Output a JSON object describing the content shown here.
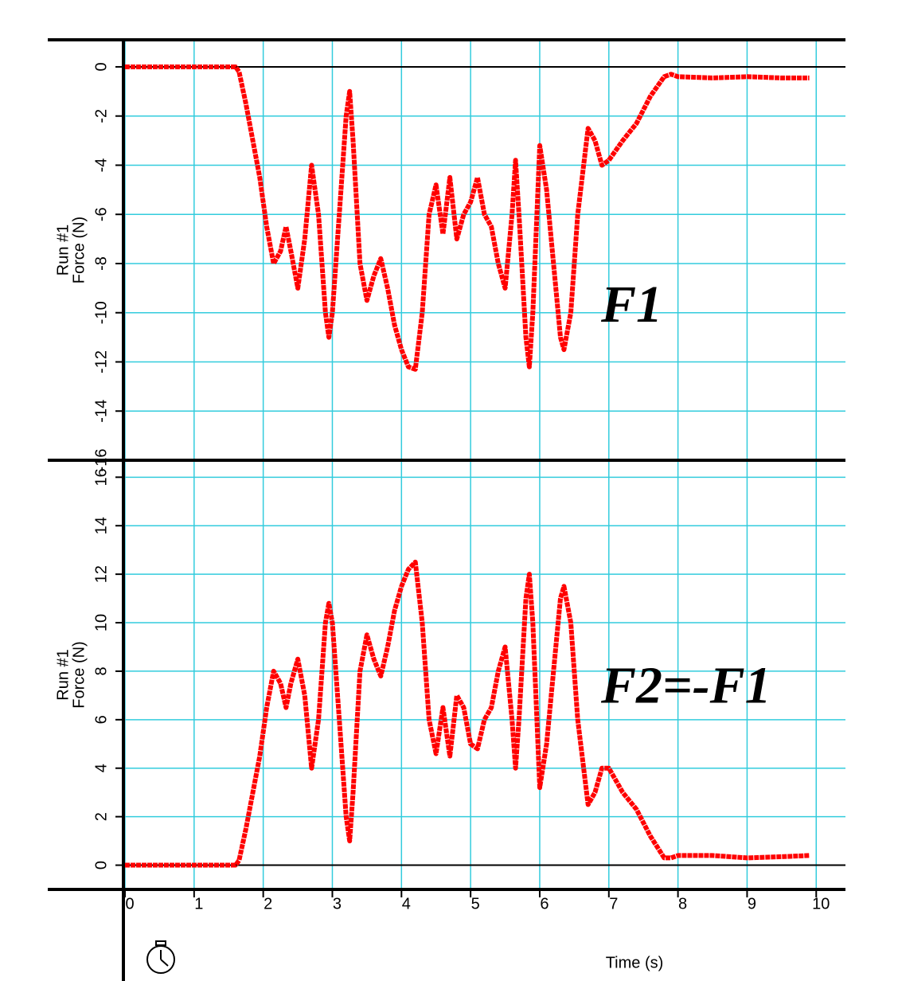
{
  "chart_data": [
    {
      "type": "line",
      "color": "#ff0000",
      "grid": true,
      "annotation": "F1",
      "ylabel_lines": [
        "Run #1",
        "Force (N)"
      ],
      "xlim": [
        0,
        10.4
      ],
      "ylim": [
        -16,
        1.1
      ],
      "yticks": [
        0,
        -2,
        -4,
        -6,
        -8,
        -10,
        -12,
        -14,
        -16
      ],
      "x": [
        0,
        1.6,
        1.65,
        1.75,
        1.85,
        1.95,
        2.05,
        2.15,
        2.25,
        2.33,
        2.4,
        2.5,
        2.6,
        2.7,
        2.8,
        2.9,
        2.95,
        3.0,
        3.1,
        3.2,
        3.25,
        3.3,
        3.4,
        3.5,
        3.6,
        3.7,
        3.8,
        3.9,
        4.0,
        4.1,
        4.2,
        4.3,
        4.4,
        4.5,
        4.6,
        4.7,
        4.8,
        4.9,
        5.0,
        5.1,
        5.2,
        5.3,
        5.4,
        5.5,
        5.6,
        5.65,
        5.7,
        5.8,
        5.85,
        5.9,
        6.0,
        6.1,
        6.2,
        6.3,
        6.35,
        6.45,
        6.55,
        6.7,
        6.8,
        6.9,
        7.0,
        7.2,
        7.4,
        7.6,
        7.8,
        7.9,
        8.0,
        8.5,
        9.0,
        9.5,
        9.9
      ],
      "values": [
        0,
        0,
        -0.2,
        -1.5,
        -3,
        -4.5,
        -6.5,
        -8,
        -7.5,
        -6.5,
        -7.5,
        -9,
        -7,
        -4,
        -6,
        -10,
        -11,
        -10,
        -6,
        -2,
        -1,
        -3,
        -8,
        -9.5,
        -8.5,
        -7.8,
        -9,
        -10.5,
        -11.5,
        -12.2,
        -12.3,
        -10,
        -6,
        -4.8,
        -6.8,
        -4.5,
        -7,
        -6,
        -5.5,
        -4.5,
        -6,
        -6.5,
        -8,
        -9,
        -6,
        -3.8,
        -6,
        -11,
        -12.2,
        -10,
        -3.2,
        -5,
        -8,
        -11,
        -11.5,
        -10,
        -6,
        -2.5,
        -3,
        -4,
        -3.8,
        -3,
        -2.3,
        -1.2,
        -0.4,
        -0.3,
        -0.4,
        -0.45,
        -0.4,
        -0.45,
        -0.45
      ]
    },
    {
      "type": "line",
      "color": "#ff0000",
      "grid": true,
      "annotation": "F2=-F1",
      "ylabel_lines": [
        "Run #1",
        "Force (N)"
      ],
      "xlabel": "Time (s)",
      "xlim": [
        0,
        10.4
      ],
      "ylim": [
        -1,
        16.7
      ],
      "xticks": [
        0,
        1,
        2,
        3,
        4,
        5,
        6,
        7,
        8,
        9,
        10
      ],
      "yticks": [
        0,
        2,
        4,
        6,
        8,
        10,
        12,
        14,
        16
      ],
      "x": [
        0,
        1.6,
        1.65,
        1.75,
        1.85,
        1.95,
        2.05,
        2.15,
        2.25,
        2.33,
        2.4,
        2.5,
        2.6,
        2.7,
        2.8,
        2.9,
        2.95,
        3.0,
        3.1,
        3.2,
        3.25,
        3.3,
        3.4,
        3.5,
        3.6,
        3.7,
        3.8,
        3.9,
        4.0,
        4.1,
        4.2,
        4.3,
        4.4,
        4.5,
        4.6,
        4.7,
        4.8,
        4.9,
        5.0,
        5.1,
        5.2,
        5.3,
        5.4,
        5.5,
        5.6,
        5.65,
        5.7,
        5.8,
        5.85,
        5.9,
        6.0,
        6.1,
        6.2,
        6.3,
        6.35,
        6.45,
        6.55,
        6.7,
        6.8,
        6.9,
        7.0,
        7.2,
        7.4,
        7.6,
        7.8,
        7.9,
        8.0,
        8.5,
        9.0,
        9.5,
        9.9
      ],
      "values": [
        0,
        0,
        0.2,
        1.5,
        3,
        4.5,
        6.5,
        8,
        7.5,
        6.5,
        7.5,
        8.5,
        7,
        4,
        6,
        10,
        10.8,
        10,
        6,
        2,
        1,
        3,
        8,
        9.5,
        8.5,
        7.8,
        9,
        10.5,
        11.5,
        12.2,
        12.5,
        10,
        6,
        4.6,
        6.5,
        4.5,
        7,
        6.5,
        5,
        4.8,
        6,
        6.5,
        8,
        9,
        6,
        4,
        6,
        11,
        12,
        10,
        3.2,
        5,
        8,
        11,
        11.5,
        10,
        6,
        2.5,
        3,
        4,
        4,
        3,
        2.3,
        1.2,
        0.3,
        0.3,
        0.4,
        0.4,
        0.3,
        0.35,
        0.4
      ]
    }
  ]
}
